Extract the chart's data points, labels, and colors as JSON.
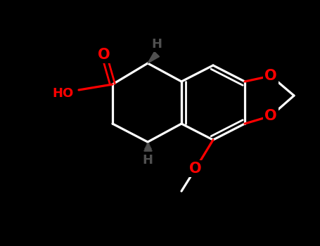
{
  "bg": "#000000",
  "bond_color": "#ffffff",
  "oxygen_color": "#ff0000",
  "h_color": "#505050",
  "figsize": [
    4.55,
    3.5
  ],
  "dpi": 100,
  "xlim": [
    0,
    455
  ],
  "ylim": [
    0,
    350
  ]
}
